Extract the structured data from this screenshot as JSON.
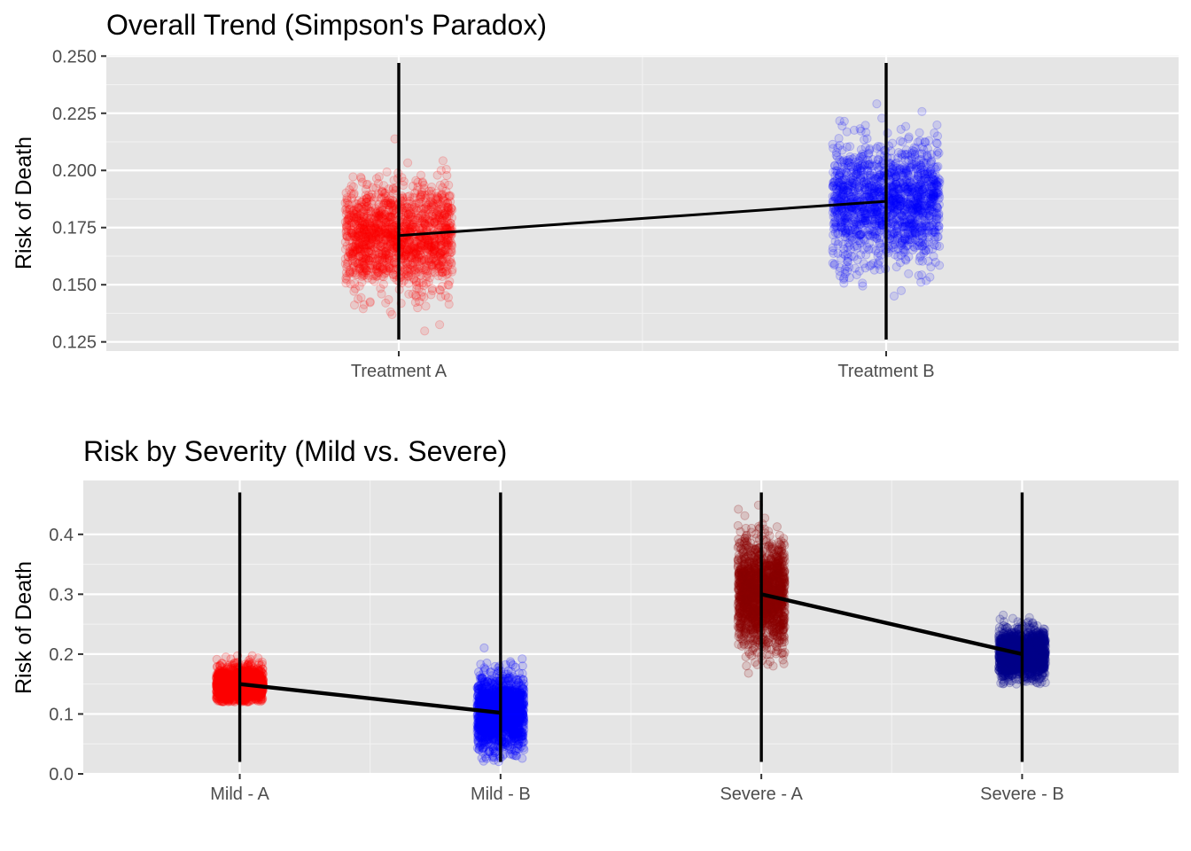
{
  "chart_data": [
    {
      "type": "scatter",
      "title": "Overall Trend (Simpson's Paradox)",
      "xlabel": "",
      "ylabel": "Risk of Death",
      "categories": [
        "Treatment A",
        "Treatment B"
      ],
      "ylim": [
        0.121,
        0.2505
      ],
      "yticks": [
        0.125,
        0.15,
        0.175,
        0.2,
        0.225,
        0.25
      ],
      "ytick_labels": [
        "0.125",
        "0.150",
        "0.175",
        "0.200",
        "0.225",
        "0.250"
      ],
      "grid": true,
      "legend": "none",
      "point_alpha": 0.12,
      "series": [
        {
          "category": "Treatment A",
          "color": "#ff0000",
          "center": 0.171,
          "spread": 0.011,
          "min": 0.126,
          "max": 0.226,
          "jitter": 0.11,
          "n": 1500
        },
        {
          "category": "Treatment B",
          "color": "#0000ff",
          "center": 0.186,
          "spread": 0.013,
          "min": 0.145,
          "max": 0.248,
          "jitter": 0.11,
          "n": 1500
        }
      ],
      "range_lines": [
        {
          "category": "Treatment A",
          "min": 0.126,
          "max": 0.247
        },
        {
          "category": "Treatment B",
          "min": 0.126,
          "max": 0.247
        }
      ],
      "mean_line": {
        "values": [
          0.1715,
          0.1865
        ],
        "color": "#000000"
      }
    },
    {
      "type": "scatter",
      "title": "Risk by Severity (Mild vs. Severe)",
      "xlabel": "",
      "ylabel": "Risk of Death",
      "categories": [
        "Mild - A",
        "Mild - B",
        "Severe - A",
        "Severe - B"
      ],
      "ylim": [
        0.0,
        0.49
      ],
      "yticks": [
        0.0,
        0.1,
        0.2,
        0.3,
        0.4
      ],
      "ytick_labels": [
        "0.0",
        "0.1",
        "0.2",
        "0.3",
        "0.4"
      ],
      "grid": true,
      "legend": "none",
      "point_alpha": 0.15,
      "series": [
        {
          "category": "Mild - A",
          "color": "#ff0000",
          "center": 0.15,
          "spread": 0.015,
          "min": 0.12,
          "max": 0.2,
          "jitter": 0.09,
          "n": 1500
        },
        {
          "category": "Mild - B",
          "color": "#0000ff",
          "center": 0.102,
          "spread": 0.03,
          "min": 0.02,
          "max": 0.22,
          "jitter": 0.09,
          "n": 1500
        },
        {
          "category": "Severe - A",
          "color": "#8b0000",
          "center": 0.3,
          "spread": 0.045,
          "min": 0.14,
          "max": 0.47,
          "jitter": 0.09,
          "n": 1500
        },
        {
          "category": "Severe - B",
          "color": "#00008b",
          "center": 0.2,
          "spread": 0.02,
          "min": 0.15,
          "max": 0.27,
          "jitter": 0.09,
          "n": 1500
        }
      ],
      "range_lines": [
        {
          "category": "Mild - A",
          "min": 0.02,
          "max": 0.47
        },
        {
          "category": "Mild - B",
          "min": 0.02,
          "max": 0.47
        },
        {
          "category": "Severe - A",
          "min": 0.02,
          "max": 0.47
        },
        {
          "category": "Severe - B",
          "min": 0.02,
          "max": 0.47
        }
      ],
      "mean_segments": [
        {
          "from": "Mild - A",
          "to": "Mild - B",
          "values": [
            0.15,
            0.102
          ]
        },
        {
          "from": "Severe - A",
          "to": "Severe - B",
          "values": [
            0.3,
            0.2
          ]
        }
      ],
      "mean_line_color": "#000000"
    }
  ]
}
